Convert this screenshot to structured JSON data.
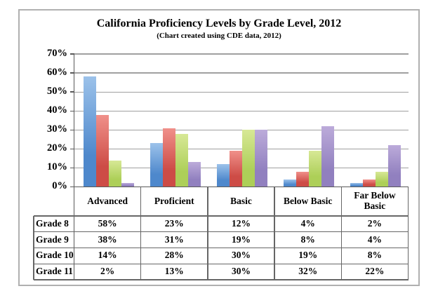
{
  "chart_data": {
    "type": "bar",
    "title": "California Proficiency Levels by Grade Level, 2012",
    "subtitle": "(Chart created using CDE data, 2012)",
    "categories": [
      "Advanced",
      "Proficient",
      "Basic",
      "Below Basic",
      "Far Below Basic"
    ],
    "series": [
      {
        "name": "Grade 8",
        "values": [
          58,
          23,
          12,
          4,
          2
        ],
        "color_top": "#9cc2ea",
        "color_bottom": "#4e88cc"
      },
      {
        "name": "Grade 9",
        "values": [
          38,
          31,
          19,
          8,
          4
        ],
        "color_top": "#f0908a",
        "color_bottom": "#cd4c46"
      },
      {
        "name": "Grade 10",
        "values": [
          14,
          28,
          30,
          19,
          8
        ],
        "color_top": "#d7e896",
        "color_bottom": "#adcf58"
      },
      {
        "name": "Grade 11",
        "values": [
          2,
          13,
          30,
          32,
          22
        ],
        "color_top": "#bcabda",
        "color_bottom": "#9180bf"
      }
    ],
    "y_axis": {
      "min": 0,
      "max": 70,
      "step": 10,
      "tick_suffix": "%"
    },
    "value_suffix": "%",
    "grid": true,
    "legend": "none"
  }
}
